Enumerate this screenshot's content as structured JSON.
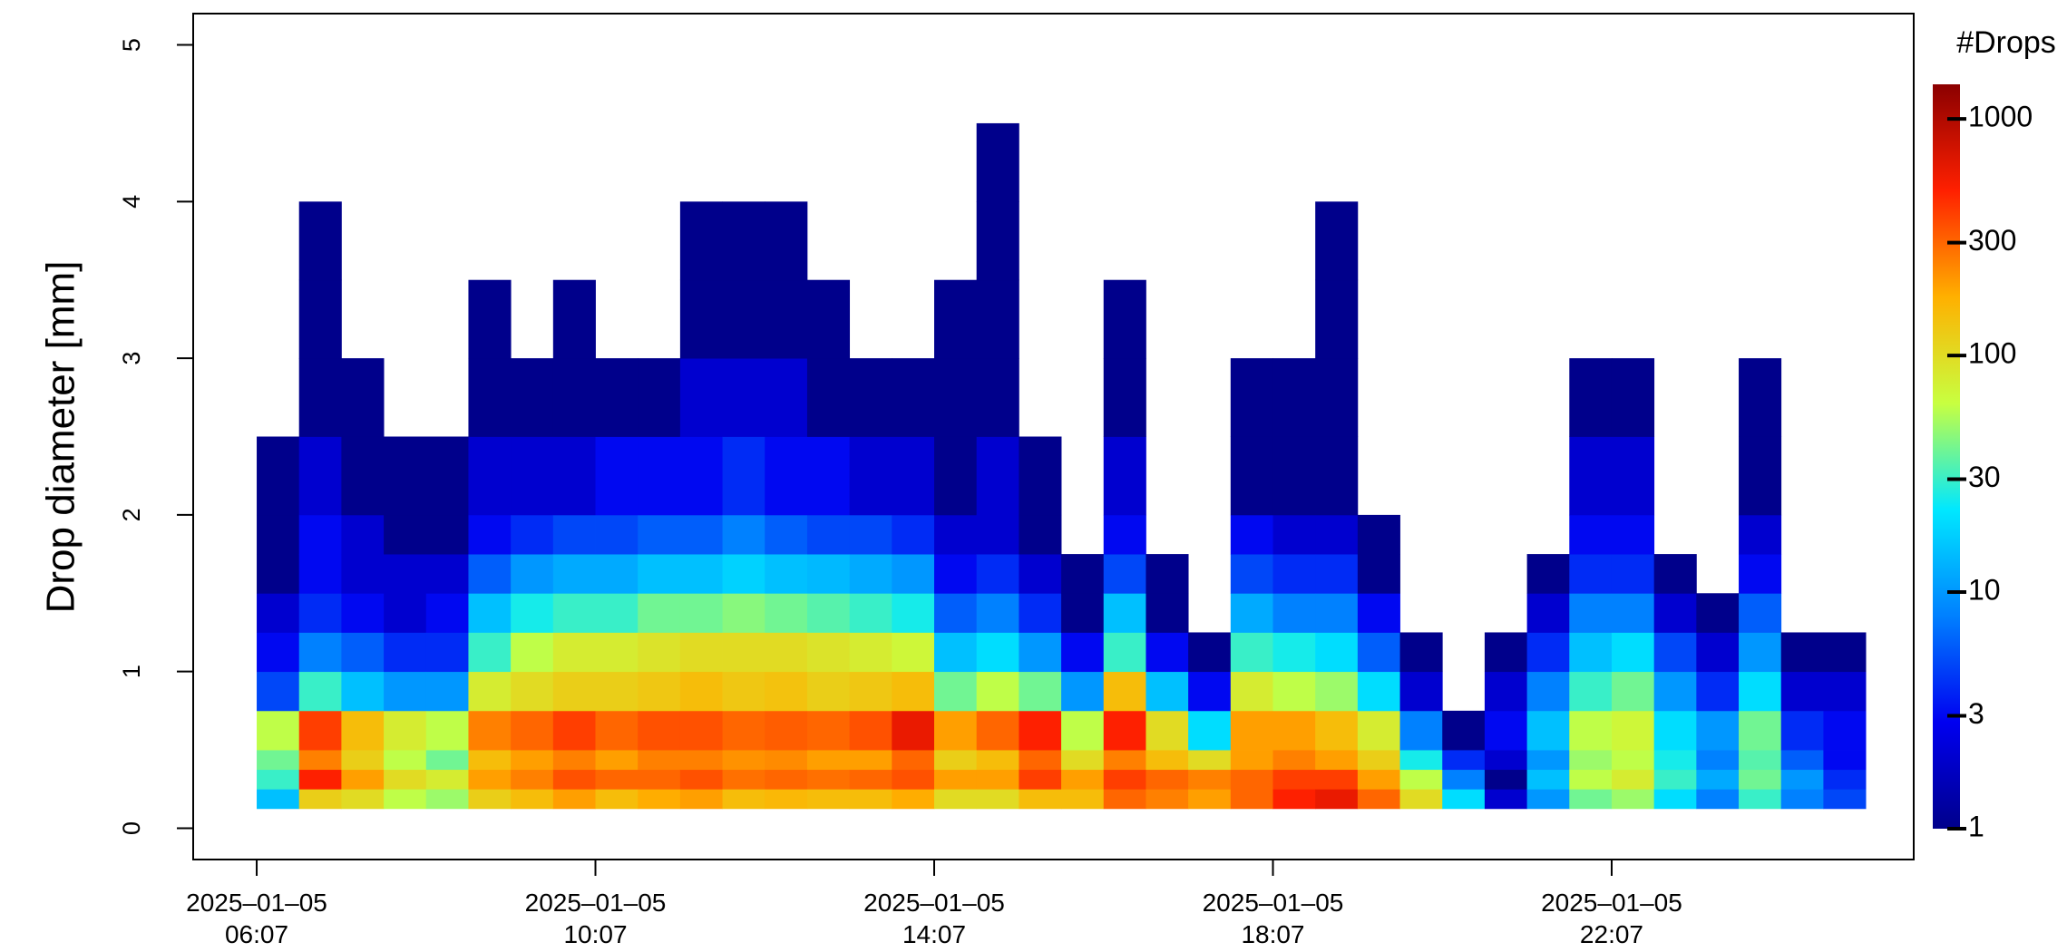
{
  "chart_data": {
    "type": "heatmap",
    "y_label": "Drop diameter [mm]",
    "colorbar_title": "#Drops",
    "x": [
      "2025-01-05 06:07",
      "2025-01-05 06:37",
      "2025-01-05 07:07",
      "2025-01-05 07:37",
      "2025-01-05 08:07",
      "2025-01-05 08:37",
      "2025-01-05 09:07",
      "2025-01-05 09:37",
      "2025-01-05 10:07",
      "2025-01-05 10:37",
      "2025-01-05 11:07",
      "2025-01-05 11:37",
      "2025-01-05 12:07",
      "2025-01-05 12:37",
      "2025-01-05 13:07",
      "2025-01-05 13:37",
      "2025-01-05 14:07",
      "2025-01-05 14:37",
      "2025-01-05 15:07",
      "2025-01-05 15:37",
      "2025-01-05 16:07",
      "2025-01-05 16:37",
      "2025-01-05 17:07",
      "2025-01-05 17:37",
      "2025-01-05 18:07",
      "2025-01-05 18:37",
      "2025-01-05 19:07",
      "2025-01-05 19:37",
      "2025-01-05 20:07",
      "2025-01-05 20:37",
      "2025-01-05 21:07",
      "2025-01-05 21:37",
      "2025-01-05 22:07",
      "2025-01-05 22:37",
      "2025-01-05 23:07",
      "2025-01-05 23:37",
      "2025-01-06 00:07",
      "2025-01-06 00:37"
    ],
    "y_bins": [
      0.125,
      0.25,
      0.375,
      0.5,
      0.75,
      1.0,
      1.25,
      1.5,
      1.75,
      2.0,
      2.5,
      3.0,
      3.5,
      4.0,
      4.5
    ],
    "values": [
      [
        15,
        30,
        40,
        60,
        5,
        3,
        2,
        1,
        1,
        1,
        null,
        null,
        null,
        null
      ],
      [
        120,
        500,
        250,
        400,
        30,
        8,
        4,
        3,
        3,
        2,
        1,
        1,
        1,
        null
      ],
      [
        100,
        200,
        120,
        150,
        15,
        6,
        3,
        2,
        2,
        1,
        1,
        null,
        null,
        null
      ],
      [
        60,
        100,
        60,
        80,
        10,
        4,
        2,
        2,
        1,
        1,
        null,
        null,
        null,
        null
      ],
      [
        50,
        80,
        40,
        60,
        10,
        4,
        3,
        2,
        1,
        1,
        null,
        null,
        null,
        null
      ],
      [
        120,
        200,
        150,
        250,
        80,
        30,
        15,
        6,
        3,
        2,
        1,
        1,
        null,
        null
      ],
      [
        150,
        250,
        200,
        300,
        100,
        60,
        25,
        10,
        4,
        2,
        1,
        null,
        null,
        null
      ],
      [
        200,
        350,
        250,
        400,
        120,
        80,
        30,
        12,
        5,
        2,
        1,
        1,
        null,
        null
      ],
      [
        150,
        300,
        200,
        300,
        120,
        80,
        30,
        12,
        5,
        3,
        1,
        null,
        null,
        null
      ],
      [
        180,
        300,
        250,
        350,
        130,
        90,
        40,
        15,
        6,
        3,
        1,
        null,
        null,
        null
      ],
      [
        200,
        350,
        250,
        350,
        150,
        100,
        40,
        15,
        6,
        3,
        2,
        1,
        1,
        null
      ],
      [
        150,
        280,
        220,
        300,
        130,
        100,
        45,
        18,
        8,
        4,
        2,
        1,
        1,
        null
      ],
      [
        160,
        300,
        230,
        320,
        140,
        100,
        40,
        15,
        6,
        3,
        2,
        1,
        1,
        null
      ],
      [
        150,
        280,
        200,
        300,
        120,
        90,
        35,
        14,
        5,
        3,
        1,
        1,
        null,
        null
      ],
      [
        150,
        300,
        200,
        350,
        130,
        80,
        30,
        12,
        5,
        2,
        1,
        null,
        null,
        null
      ],
      [
        180,
        350,
        300,
        600,
        150,
        70,
        25,
        10,
        4,
        2,
        1,
        null,
        null,
        null
      ],
      [
        100,
        200,
        120,
        200,
        40,
        15,
        6,
        3,
        2,
        1,
        1,
        1,
        null,
        null
      ],
      [
        100,
        200,
        150,
        300,
        60,
        20,
        8,
        4,
        2,
        2,
        1,
        1,
        1,
        1
      ],
      [
        150,
        400,
        300,
        500,
        40,
        10,
        4,
        2,
        1,
        1,
        null,
        null,
        null,
        null
      ],
      [
        150,
        200,
        100,
        60,
        10,
        3,
        1,
        1,
        null,
        null,
        null,
        null,
        null,
        null
      ],
      [
        300,
        400,
        250,
        500,
        150,
        30,
        15,
        5,
        3,
        2,
        1,
        1,
        null,
        null
      ],
      [
        250,
        300,
        150,
        100,
        15,
        3,
        1,
        1,
        null,
        null,
        null,
        null,
        null,
        null
      ],
      [
        200,
        250,
        100,
        20,
        3,
        1,
        null,
        null,
        null,
        null,
        null,
        null,
        null,
        null
      ],
      [
        300,
        300,
        200,
        200,
        80,
        30,
        12,
        5,
        3,
        1,
        1,
        null,
        null,
        null
      ],
      [
        500,
        400,
        250,
        200,
        60,
        25,
        8,
        4,
        2,
        1,
        1,
        null,
        null,
        null
      ],
      [
        600,
        400,
        200,
        150,
        50,
        20,
        8,
        4,
        2,
        1,
        1,
        1,
        1,
        null
      ],
      [
        300,
        200,
        120,
        80,
        20,
        6,
        3,
        1,
        1,
        null,
        null,
        null,
        null,
        null
      ],
      [
        100,
        60,
        25,
        8,
        2,
        1,
        null,
        null,
        null,
        null,
        null,
        null,
        null,
        null
      ],
      [
        20,
        8,
        4,
        1,
        null,
        null,
        null,
        null,
        null,
        null,
        null,
        null,
        null,
        null
      ],
      [
        2,
        1,
        2,
        3,
        2,
        1,
        null,
        null,
        null,
        null,
        null,
        null,
        null,
        null
      ],
      [
        10,
        15,
        10,
        15,
        8,
        4,
        2,
        1,
        null,
        null,
        null,
        null,
        null,
        null
      ],
      [
        40,
        60,
        50,
        60,
        30,
        15,
        8,
        4,
        3,
        2,
        1,
        null,
        null,
        null
      ],
      [
        50,
        80,
        60,
        70,
        40,
        20,
        8,
        4,
        3,
        2,
        1,
        null,
        null,
        null
      ],
      [
        20,
        30,
        25,
        20,
        10,
        5,
        2,
        1,
        null,
        null,
        null,
        null,
        null,
        null
      ],
      [
        8,
        12,
        8,
        10,
        4,
        2,
        1,
        null,
        null,
        null,
        null,
        null,
        null,
        null
      ],
      [
        30,
        40,
        35,
        40,
        20,
        10,
        6,
        3,
        2,
        1,
        1,
        null,
        null,
        null
      ],
      [
        8,
        10,
        6,
        4,
        2,
        1,
        null,
        null,
        null,
        null,
        null,
        null,
        null,
        null
      ],
      [
        5,
        4,
        3,
        3,
        2,
        1,
        null,
        null,
        null,
        null,
        null,
        null,
        null,
        null
      ]
    ],
    "xlim": [
      "2025-01-05 05:22",
      "2025-01-06 01:41"
    ],
    "xticks": [
      {
        "value": "2025-01-05 06:07",
        "label": "2025–01–05\n06:07"
      },
      {
        "value": "2025-01-05 10:07",
        "label": "2025–01–05\n10:07"
      },
      {
        "value": "2025-01-05 14:07",
        "label": "2025–01–05\n14:07"
      },
      {
        "value": "2025-01-05 18:07",
        "label": "2025–01–05\n18:07"
      },
      {
        "value": "2025-01-05 22:07",
        "label": "2025–01–05\n22:07"
      }
    ],
    "ylim": [
      -0.2,
      5.2
    ],
    "yticks": [
      0,
      1,
      2,
      3,
      4,
      5
    ],
    "zlim": [
      1,
      1400
    ],
    "zticks": [
      1,
      3,
      10,
      30,
      100,
      300,
      1000
    ],
    "zscale": "log",
    "colors": [
      "#00008b",
      "#0000f0",
      "#0080ff",
      "#00e8ff",
      "#c8ff40",
      "#ffb000",
      "#ff2000",
      "#8b0000"
    ]
  }
}
